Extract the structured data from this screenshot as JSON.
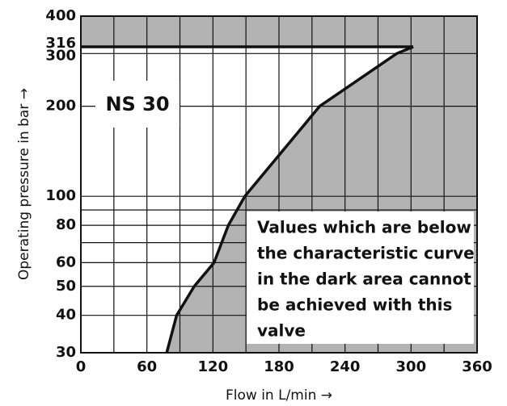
{
  "chart_data": {
    "type": "line",
    "x_label": "Flow in L/min →",
    "y_label": "Operating pressure in bar →",
    "label": "NS 30",
    "annotation": [
      "Values which are below",
      "the characteristic curve",
      "in the dark area cannot",
      "be achieved with this",
      "valve"
    ],
    "x": [
      78,
      87,
      103,
      121,
      134,
      149,
      217,
      287,
      302
    ],
    "series": [
      {
        "name": "NS 30",
        "color": "#111111",
        "values": [
          30,
          40,
          50,
          60,
          80,
          100,
          200,
          300,
          316
        ]
      }
    ],
    "limit": 316,
    "shade_color": "#b3b3b3",
    "xlim": [
      0,
      360
    ],
    "xticks": [
      0,
      60,
      120,
      180,
      240,
      300,
      360
    ],
    "xgrid": [
      0,
      30,
      60,
      90,
      120,
      150,
      180,
      210,
      240,
      270,
      300,
      330,
      360
    ],
    "ylim": [
      30,
      400
    ],
    "yticks": [
      30,
      40,
      50,
      60,
      80,
      100,
      200,
      300,
      316,
      400
    ],
    "ygrid": [
      30,
      40,
      50,
      60,
      70,
      80,
      90,
      100,
      200,
      300,
      400
    ],
    "log_y": true
  }
}
